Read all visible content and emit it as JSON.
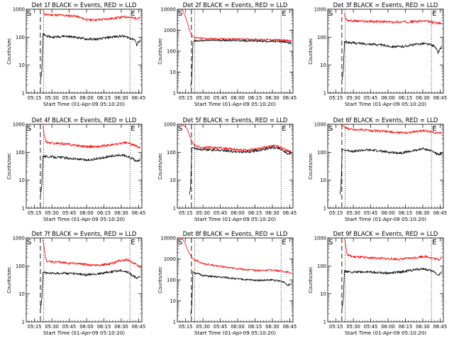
{
  "figure_title": "",
  "chart_data": [
    {
      "type": "line",
      "title": "Det 1f BLACK = Events, RED = LLD",
      "xlabel": "Start Time (01-Apr-09 05:10:20)",
      "ylabel": "Counts/sec",
      "yscale": "log",
      "ylim": [
        1,
        1000
      ],
      "y_ticks": [
        "1",
        "10",
        "100",
        "1000"
      ],
      "x_ticks": [
        "05:15",
        "05:30",
        "05:45",
        "06:00",
        "06:15",
        "06:30",
        "06:45"
      ],
      "markers": {
        "S": "S",
        "E": "E"
      },
      "legend": "none",
      "grid": false,
      "series": [
        {
          "color": "#ff0000",
          "x_minutes": [
            12,
            13,
            14,
            15,
            20,
            30,
            40,
            50,
            60,
            70,
            80,
            85,
            88,
            92,
            95,
            96
          ],
          "values": [
            900,
            700,
            650,
            640,
            630,
            600,
            570,
            420,
            420,
            460,
            520,
            540,
            500,
            480,
            480,
            520
          ]
        },
        {
          "color": "#000000",
          "x_minutes": [
            10,
            11,
            12,
            13,
            15,
            20,
            30,
            40,
            50,
            60,
            70,
            80,
            85,
            88,
            92,
            93,
            95,
            96
          ],
          "values": [
            3,
            6,
            130,
            120,
            110,
            100,
            110,
            100,
            85,
            85,
            100,
            110,
            100,
            90,
            80,
            50,
            70,
            80
          ]
        }
      ]
    },
    {
      "type": "line",
      "title": "Det 2f BLACK = Events, RED = LLD",
      "xlabel": "Start Time (01-Apr-09 05:10:20)",
      "ylabel": "Counts/sec",
      "yscale": "log",
      "ylim": [
        1,
        10000
      ],
      "y_ticks": [
        "1",
        "10",
        "100",
        "1000",
        "10000"
      ],
      "x_ticks": [
        "05:15",
        "05:30",
        "05:45",
        "06:00",
        "06:15",
        "06:30",
        "06:45"
      ],
      "markers": {
        "S": "S",
        "E": "E"
      },
      "legend": "none",
      "grid": false,
      "series": [
        {
          "color": "#ff0000",
          "x_minutes": [
            0,
            2,
            4,
            6,
            8,
            10,
            12,
            15,
            20,
            30,
            40,
            50,
            60,
            70,
            80,
            90,
            96
          ],
          "values": [
            10000,
            9000,
            5000,
            2500,
            1000,
            600,
            450,
            420,
            400,
            390,
            380,
            380,
            370,
            360,
            350,
            330,
            320
          ]
        },
        {
          "color": "#000000",
          "x_minutes": [
            9,
            10,
            11,
            12,
            15,
            20,
            30,
            40,
            50,
            60,
            70,
            80,
            90,
            96
          ],
          "values": [
            2,
            5,
            260,
            300,
            310,
            320,
            330,
            330,
            320,
            310,
            300,
            290,
            280,
            240
          ]
        }
      ]
    },
    {
      "type": "line",
      "title": "Det 3f BLACK = Events, RED = LLD",
      "xlabel": "Start Time (01-Apr-09 05:10:20)",
      "ylabel": "Counts/sec",
      "yscale": "log",
      "ylim": [
        1,
        1000
      ],
      "y_ticks": [
        "1",
        "10",
        "100",
        "1000"
      ],
      "x_ticks": [
        "05:15",
        "05:30",
        "05:45",
        "06:00",
        "06:15",
        "06:30",
        "06:45"
      ],
      "markers": {
        "S": "S",
        "E": "E"
      },
      "legend": "none",
      "grid": false,
      "series": [
        {
          "color": "#ff0000",
          "x_minutes": [
            12,
            13,
            15,
            20,
            30,
            40,
            50,
            60,
            70,
            80,
            85,
            90,
            96
          ],
          "values": [
            700,
            450,
            400,
            380,
            370,
            360,
            350,
            350,
            360,
            380,
            360,
            330,
            310
          ]
        },
        {
          "color": "#000000",
          "x_minutes": [
            10,
            11,
            12,
            13,
            15,
            20,
            30,
            40,
            50,
            60,
            70,
            80,
            85,
            90,
            93,
            95,
            96
          ],
          "values": [
            3,
            7,
            70,
            68,
            65,
            62,
            58,
            55,
            48,
            45,
            52,
            60,
            55,
            48,
            28,
            40,
            45
          ]
        }
      ]
    },
    {
      "type": "line",
      "title": "Det 4f BLACK = Events, RED = LLD",
      "xlabel": "Start Time (01-Apr-09 05:10:20)",
      "ylabel": "Counts/sec",
      "yscale": "log",
      "ylim": [
        1,
        1000
      ],
      "y_ticks": [
        "1",
        "10",
        "100",
        "1000"
      ],
      "x_ticks": [
        "05:15",
        "05:30",
        "05:45",
        "06:00",
        "06:15",
        "06:30",
        "06:45"
      ],
      "markers": {
        "S": "S",
        "E": "E"
      },
      "legend": "none",
      "grid": false,
      "series": [
        {
          "color": "#ff0000",
          "x_minutes": [
            12,
            13,
            14,
            15,
            20,
            30,
            40,
            50,
            60,
            70,
            80,
            85,
            90,
            96
          ],
          "values": [
            900,
            400,
            260,
            230,
            210,
            200,
            180,
            160,
            160,
            180,
            210,
            220,
            180,
            150
          ]
        },
        {
          "color": "#000000",
          "x_minutes": [
            10,
            11,
            12,
            13,
            15,
            20,
            30,
            40,
            50,
            60,
            70,
            80,
            85,
            90,
            93,
            96
          ],
          "values": [
            3,
            7,
            75,
            72,
            70,
            68,
            64,
            58,
            52,
            60,
            72,
            80,
            72,
            58,
            45,
            55
          ]
        }
      ]
    },
    {
      "type": "line",
      "title": "Det 5f BLACK = Events, RED = LLD",
      "xlabel": "Start Time (01-Apr-09 05:10:20)",
      "ylabel": "Counts/sec",
      "yscale": "log",
      "ylim": [
        1,
        1000
      ],
      "y_ticks": [
        "1",
        "10",
        "100",
        "1000"
      ],
      "x_ticks": [
        "05:15",
        "05:30",
        "05:45",
        "06:00",
        "06:15",
        "06:30",
        "06:45"
      ],
      "markers": {
        "S": "S",
        "E": "E"
      },
      "legend": "none",
      "grid": false,
      "series": [
        {
          "color": "#ff0000",
          "x_minutes": [
            0,
            3,
            6,
            8,
            10,
            12,
            15,
            20,
            30,
            40,
            50,
            60,
            70,
            80,
            85,
            90,
            96
          ],
          "values": [
            1000,
            900,
            700,
            400,
            250,
            180,
            160,
            150,
            145,
            140,
            120,
            120,
            140,
            170,
            160,
            130,
            100
          ]
        },
        {
          "color": "#000000",
          "x_minutes": [
            8,
            9,
            10,
            12,
            15,
            20,
            30,
            40,
            50,
            60,
            70,
            80,
            85,
            90,
            93,
            96
          ],
          "values": [
            3,
            6,
            150,
            140,
            130,
            125,
            120,
            115,
            100,
            105,
            120,
            150,
            140,
            110,
            85,
            100
          ]
        }
      ]
    },
    {
      "type": "line",
      "title": "Det 6f BLACK = Events, RED = LLD",
      "xlabel": "Start Time (01-Apr-09 05:10:20)",
      "ylabel": "Counts/sec",
      "yscale": "log",
      "ylim": [
        1,
        1000
      ],
      "y_ticks": [
        "1",
        "10",
        "100",
        "1000"
      ],
      "x_ticks": [
        "05:15",
        "05:30",
        "05:45",
        "06:00",
        "06:15",
        "06:30",
        "06:45"
      ],
      "markers": {
        "S": "S",
        "E": "E"
      },
      "legend": "none",
      "grid": false,
      "series": [
        {
          "color": "#ff0000",
          "x_minutes": [
            10,
            12,
            15,
            20,
            30,
            40,
            50,
            60,
            70,
            80,
            85,
            90,
            96
          ],
          "values": [
            950,
            800,
            700,
            650,
            620,
            580,
            540,
            500,
            520,
            600,
            560,
            520,
            480
          ]
        },
        {
          "color": "#000000",
          "x_minutes": [
            8,
            9,
            10,
            12,
            15,
            20,
            30,
            40,
            50,
            60,
            70,
            80,
            85,
            90,
            93,
            96
          ],
          "values": [
            3,
            6,
            130,
            120,
            115,
            110,
            120,
            115,
            100,
            95,
            110,
            135,
            120,
            100,
            80,
            95
          ]
        }
      ]
    },
    {
      "type": "line",
      "title": "Det 7f BLACK = Events, RED = LLD",
      "xlabel": "Start Time (01-Apr-09 05:10:20)",
      "ylabel": "Counts/sec",
      "yscale": "log",
      "ylim": [
        1,
        1000
      ],
      "y_ticks": [
        "1",
        "10",
        "100",
        "1000"
      ],
      "x_ticks": [
        "05:15",
        "05:30",
        "05:45",
        "06:00",
        "06:15",
        "06:30",
        "06:45"
      ],
      "markers": {
        "S": "S",
        "E": "E"
      },
      "legend": "none",
      "grid": false,
      "series": [
        {
          "color": "#ff0000",
          "x_minutes": [
            12,
            13,
            14,
            15,
            20,
            30,
            40,
            50,
            60,
            70,
            80,
            85,
            90,
            96
          ],
          "values": [
            900,
            450,
            200,
            150,
            140,
            130,
            125,
            110,
            105,
            120,
            160,
            170,
            130,
            95
          ]
        },
        {
          "color": "#000000",
          "x_minutes": [
            10,
            11,
            12,
            13,
            15,
            20,
            30,
            40,
            50,
            60,
            70,
            80,
            85,
            90,
            93,
            96
          ],
          "values": [
            3,
            7,
            60,
            58,
            57,
            55,
            55,
            52,
            48,
            52,
            62,
            70,
            60,
            45,
            35,
            42
          ]
        }
      ]
    },
    {
      "type": "line",
      "title": "Det 8f BLACK = Events, RED = LLD",
      "xlabel": "Start Time (01-Apr-09 05:10:20)",
      "ylabel": "Counts/sec",
      "yscale": "log",
      "ylim": [
        1,
        10000
      ],
      "y_ticks": [
        "1",
        "10",
        "100",
        "1000",
        "10000"
      ],
      "x_ticks": [
        "05:15",
        "05:30",
        "05:45",
        "06:00",
        "06:15",
        "06:30",
        "06:45"
      ],
      "markers": {
        "S": "S",
        "E": "E"
      },
      "legend": "none",
      "grid": false,
      "series": [
        {
          "color": "#ff0000",
          "x_minutes": [
            0,
            2,
            4,
            6,
            8,
            10,
            12,
            15,
            20,
            30,
            40,
            50,
            60,
            70,
            80,
            90,
            96
          ],
          "values": [
            10000,
            9000,
            6000,
            3000,
            1800,
            1200,
            900,
            800,
            600,
            480,
            400,
            340,
            300,
            280,
            300,
            250,
            220
          ]
        },
        {
          "color": "#000000",
          "x_minutes": [
            9,
            10,
            11,
            12,
            15,
            20,
            30,
            40,
            50,
            60,
            70,
            80,
            90,
            93,
            96
          ],
          "values": [
            2,
            6,
            260,
            220,
            200,
            160,
            140,
            130,
            110,
            100,
            95,
            100,
            80,
            55,
            70
          ]
        }
      ]
    },
    {
      "type": "line",
      "title": "Det 9f BLACK = Events, RED = LLD",
      "xlabel": "Start Time (01-Apr-09 05:10:20)",
      "ylabel": "Counts/sec",
      "yscale": "log",
      "ylim": [
        1,
        1000
      ],
      "y_ticks": [
        "1",
        "10",
        "100",
        "1000"
      ],
      "x_ticks": [
        "05:15",
        "05:30",
        "05:45",
        "06:00",
        "06:15",
        "06:30",
        "06:45"
      ],
      "markers": {
        "S": "S",
        "E": "E"
      },
      "legend": "none",
      "grid": false,
      "series": [
        {
          "color": "#ff0000",
          "x_minutes": [
            12,
            13,
            14,
            15,
            20,
            30,
            40,
            50,
            60,
            70,
            80,
            85,
            90,
            94,
            96
          ],
          "values": [
            950,
            600,
            300,
            240,
            210,
            200,
            190,
            180,
            175,
            190,
            220,
            210,
            180,
            170,
            220
          ]
        },
        {
          "color": "#000000",
          "x_minutes": [
            10,
            11,
            12,
            13,
            15,
            20,
            30,
            40,
            50,
            60,
            70,
            80,
            85,
            90,
            93,
            96
          ],
          "values": [
            3,
            7,
            70,
            65,
            62,
            60,
            62,
            58,
            55,
            60,
            70,
            80,
            70,
            62,
            45,
            58
          ]
        }
      ]
    }
  ]
}
